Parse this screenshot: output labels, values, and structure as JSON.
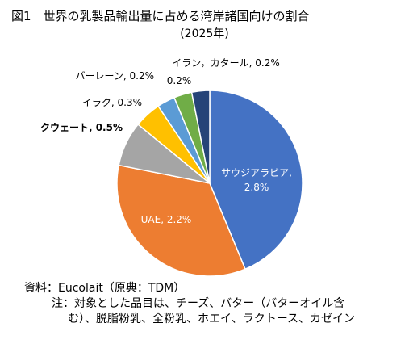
{
  "title": "図1　世界の乳製品輸出量に占める湾岸諸国向けの割合",
  "subtitle": "(2025年)",
  "chart_data": {
    "type": "pie",
    "title": "図1　世界の乳製品輸出量に占める湾岸諸国向けの割合",
    "subtitle": "(2025年)",
    "unit": "%",
    "slices": [
      {
        "label": "サウジアラビア",
        "value": 2.8,
        "display": "サウジアラビア,\n2.8%",
        "color": "#4472C4"
      },
      {
        "label": "UAE",
        "value": 2.2,
        "display": "UAE, 2.2%",
        "color": "#ED7D31"
      },
      {
        "label": "クウェート",
        "value": 0.5,
        "display": "クウェート, 0.5%",
        "color": "#A5A5A5"
      },
      {
        "label": "イラク",
        "value": 0.3,
        "display": "イラク, 0.3%",
        "color": "#FFC000"
      },
      {
        "label": "バーレーン",
        "value": 0.2,
        "display": "バーレーン, 0.2%",
        "color": "#5B9BD5"
      },
      {
        "label": "(unlabeled)",
        "value": 0.2,
        "display": "0.2%",
        "color": "#70AD47"
      },
      {
        "label": "イラン, カタール",
        "value": 0.2,
        "display": "イラン，カタール, 0.2%",
        "color": "#264478"
      }
    ],
    "legend": "none"
  },
  "notes": {
    "source": "資料：Eucolait（原典：TDM）",
    "note_line1": "注：対象とした品目は、チーズ、バター（バターオイル含",
    "note_line2": "む）、脱脂粉乳、全粉乳、ホエイ、ラクトース、カゼイン"
  }
}
